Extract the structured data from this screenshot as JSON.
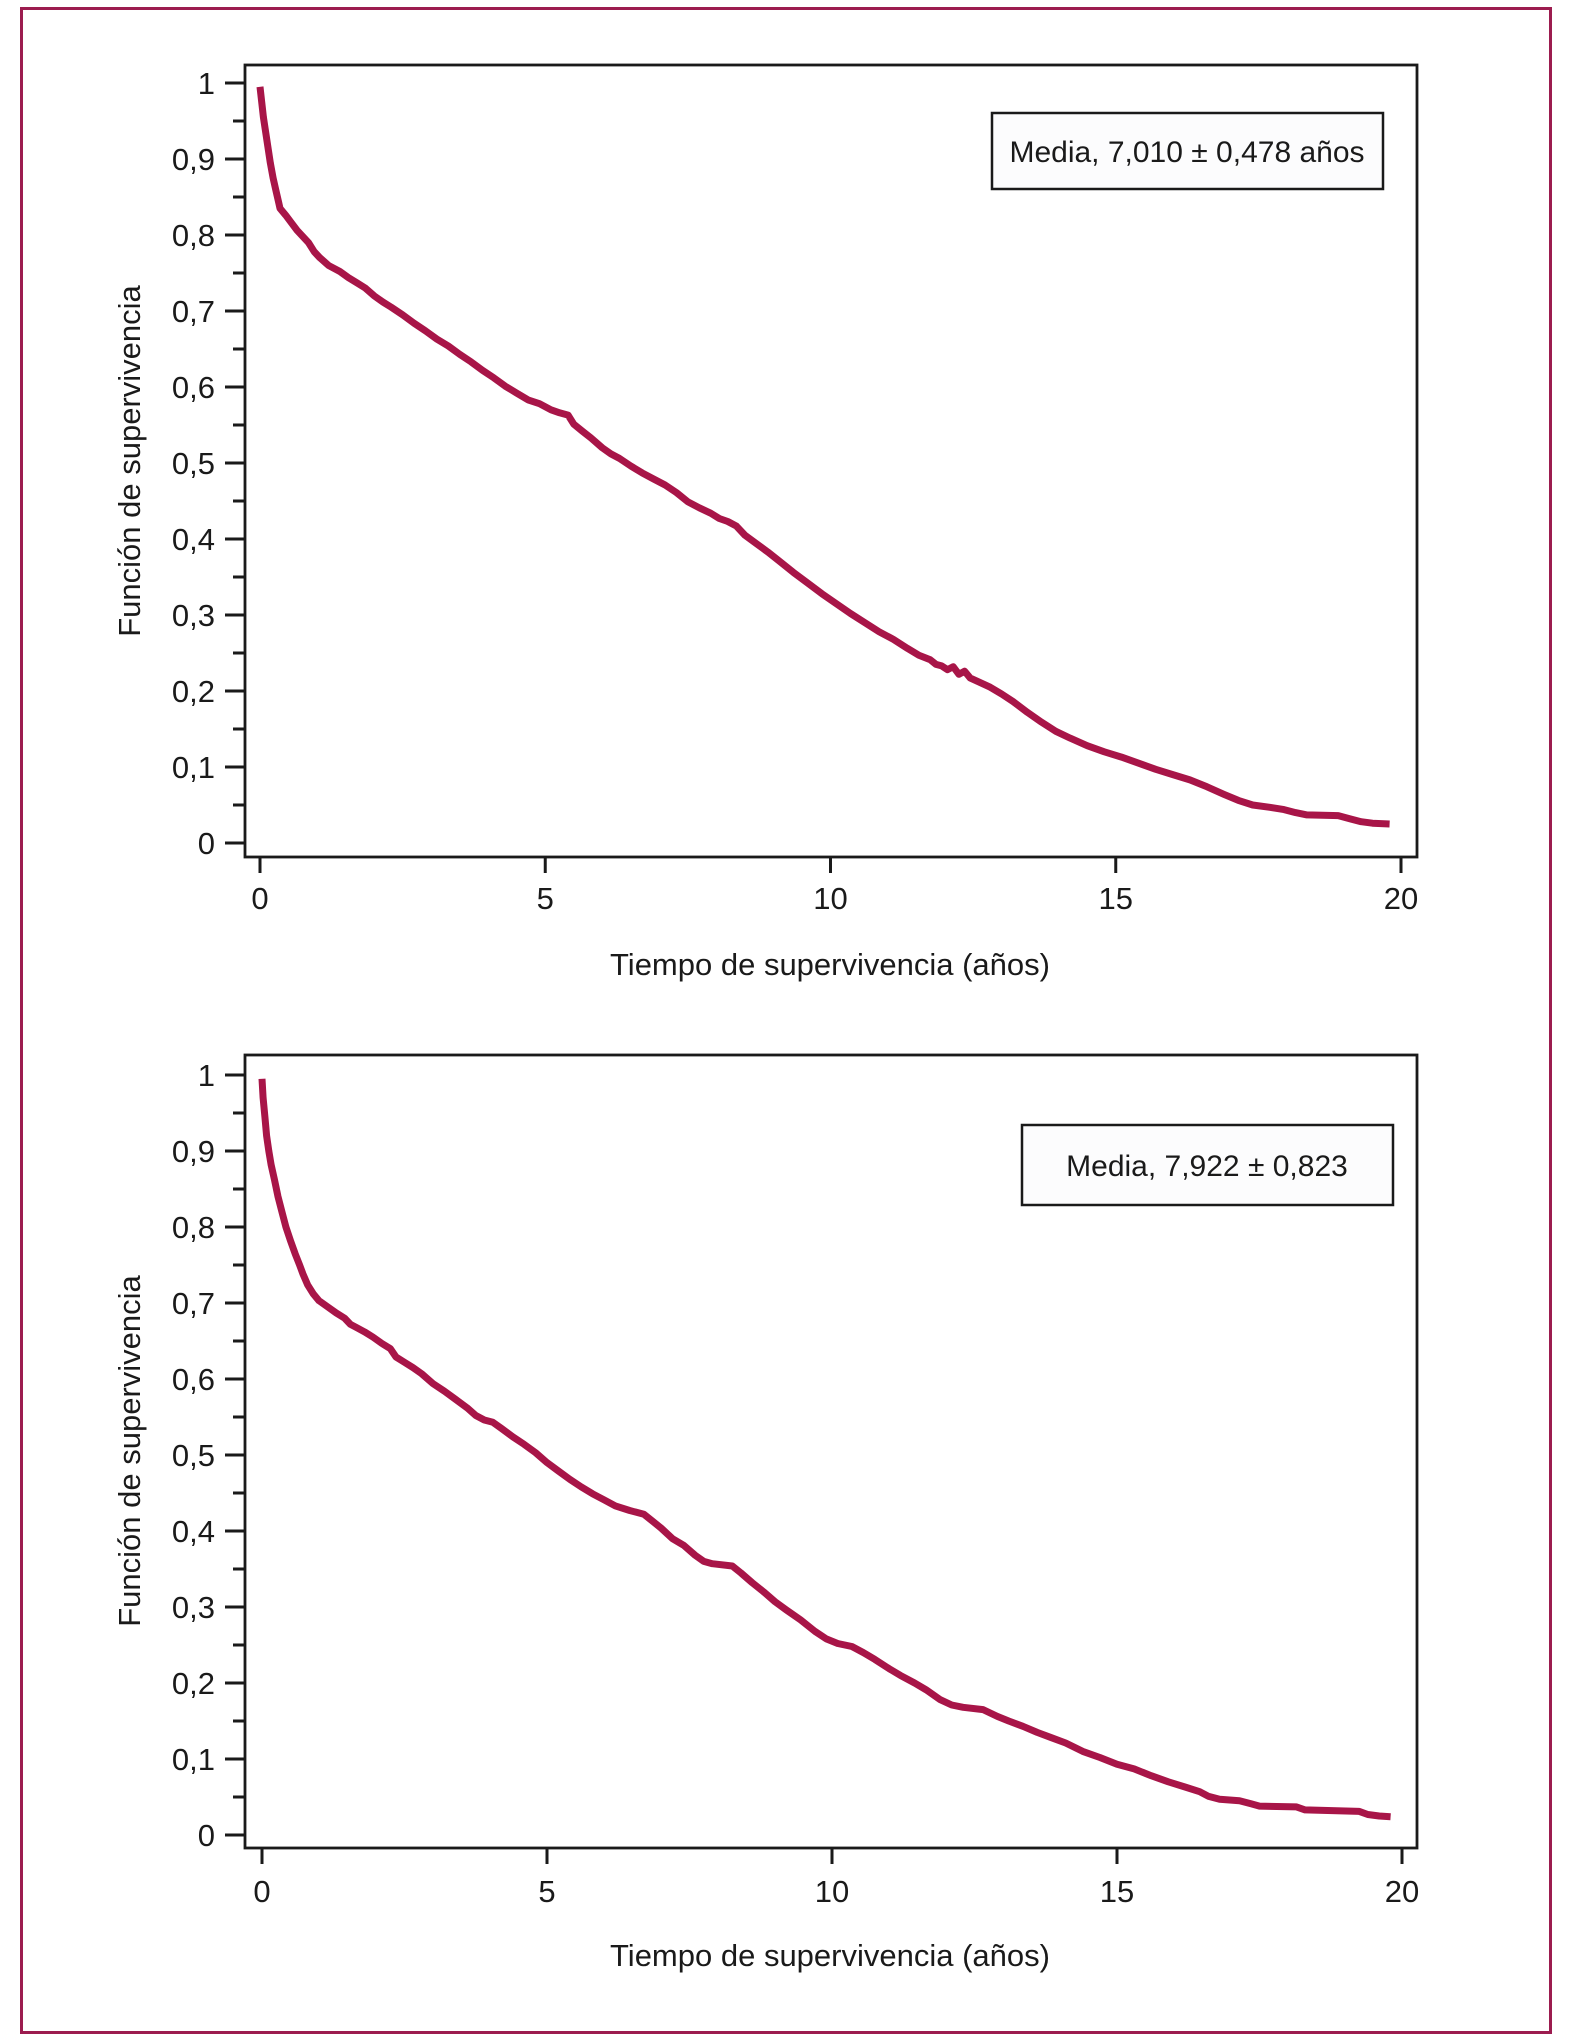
{
  "page": {
    "background": "#ffffff",
    "border_color": "#9C1C4F"
  },
  "chart_data": [
    {
      "type": "line",
      "subtype": "kaplan-meier-survival-curve",
      "title": "",
      "legend_box_text": "Media, 7,010 ± 0,478 años",
      "xlabel": "Tiempo de supervivencia (años)",
      "ylabel": "Función de supervivencia",
      "xlim": [
        0,
        20
      ],
      "ylim": [
        0,
        1
      ],
      "grid": false,
      "legend_position": "top-right",
      "line_color": "#A81548",
      "x_tick_values": [
        0,
        5,
        10,
        15,
        20
      ],
      "x_tick_labels": [
        "0",
        "5",
        "10",
        "15",
        "20"
      ],
      "y_tick_values": [
        0,
        0.1,
        0.2,
        0.3,
        0.4,
        0.5,
        0.6,
        0.7,
        0.8,
        0.9,
        1
      ],
      "y_tick_labels": [
        "0",
        "0,1",
        "0,2",
        "0,3",
        "0,4",
        "0,5",
        "0,6",
        "0,7",
        "0,8",
        "0,9",
        "1"
      ],
      "y_minor_tick_values": [
        0.05,
        0.15,
        0.25,
        0.35,
        0.45,
        0.55,
        0.65,
        0.75,
        0.85,
        0.95
      ],
      "points": [
        [
          0,
          0.995
        ],
        [
          0.03,
          0.975
        ],
        [
          0.06,
          0.955
        ],
        [
          0.1,
          0.935
        ],
        [
          0.14,
          0.915
        ],
        [
          0.18,
          0.895
        ],
        [
          0.23,
          0.875
        ],
        [
          0.28,
          0.858
        ],
        [
          0.32,
          0.845
        ],
        [
          0.35,
          0.835
        ],
        [
          0.45,
          0.826
        ],
        [
          0.55,
          0.816
        ],
        [
          0.65,
          0.806
        ],
        [
          0.75,
          0.798
        ],
        [
          0.85,
          0.79
        ],
        [
          0.95,
          0.778
        ],
        [
          1.05,
          0.77
        ],
        [
          1.2,
          0.76
        ],
        [
          1.4,
          0.752
        ],
        [
          1.55,
          0.744
        ],
        [
          1.7,
          0.737
        ],
        [
          1.85,
          0.73
        ],
        [
          2.0,
          0.72
        ],
        [
          2.15,
          0.712
        ],
        [
          2.3,
          0.705
        ],
        [
          2.5,
          0.695
        ],
        [
          2.7,
          0.684
        ],
        [
          2.9,
          0.674
        ],
        [
          3.1,
          0.663
        ],
        [
          3.3,
          0.654
        ],
        [
          3.5,
          0.643
        ],
        [
          3.7,
          0.633
        ],
        [
          3.9,
          0.622
        ],
        [
          4.1,
          0.612
        ],
        [
          4.3,
          0.601
        ],
        [
          4.5,
          0.592
        ],
        [
          4.7,
          0.583
        ],
        [
          4.9,
          0.578
        ],
        [
          5.1,
          0.57
        ],
        [
          5.25,
          0.566
        ],
        [
          5.4,
          0.563
        ],
        [
          5.5,
          0.551
        ],
        [
          5.65,
          0.542
        ],
        [
          5.8,
          0.533
        ],
        [
          6.0,
          0.52
        ],
        [
          6.15,
          0.512
        ],
        [
          6.3,
          0.506
        ],
        [
          6.5,
          0.496
        ],
        [
          6.7,
          0.487
        ],
        [
          6.9,
          0.479
        ],
        [
          7.1,
          0.471
        ],
        [
          7.3,
          0.461
        ],
        [
          7.5,
          0.449
        ],
        [
          7.7,
          0.441
        ],
        [
          7.9,
          0.434
        ],
        [
          8.05,
          0.427
        ],
        [
          8.2,
          0.423
        ],
        [
          8.35,
          0.417
        ],
        [
          8.5,
          0.405
        ],
        [
          8.7,
          0.394
        ],
        [
          8.9,
          0.383
        ],
        [
          9.1,
          0.371
        ],
        [
          9.35,
          0.356
        ],
        [
          9.6,
          0.342
        ],
        [
          9.85,
          0.328
        ],
        [
          10.1,
          0.315
        ],
        [
          10.35,
          0.302
        ],
        [
          10.6,
          0.29
        ],
        [
          10.85,
          0.278
        ],
        [
          11.1,
          0.268
        ],
        [
          11.35,
          0.256
        ],
        [
          11.55,
          0.247
        ],
        [
          11.75,
          0.241
        ],
        [
          11.85,
          0.235
        ],
        [
          11.95,
          0.233
        ],
        [
          12.05,
          0.228
        ],
        [
          12.15,
          0.232
        ],
        [
          12.25,
          0.222
        ],
        [
          12.35,
          0.226
        ],
        [
          12.45,
          0.217
        ],
        [
          12.6,
          0.212
        ],
        [
          12.8,
          0.205
        ],
        [
          13.0,
          0.196
        ],
        [
          13.2,
          0.186
        ],
        [
          13.45,
          0.172
        ],
        [
          13.7,
          0.159
        ],
        [
          13.95,
          0.147
        ],
        [
          14.2,
          0.138
        ],
        [
          14.5,
          0.128
        ],
        [
          14.8,
          0.12
        ],
        [
          15.1,
          0.113
        ],
        [
          15.4,
          0.105
        ],
        [
          15.7,
          0.097
        ],
        [
          16.0,
          0.09
        ],
        [
          16.3,
          0.083
        ],
        [
          16.6,
          0.074
        ],
        [
          16.9,
          0.064
        ],
        [
          17.15,
          0.056
        ],
        [
          17.4,
          0.05
        ],
        [
          17.7,
          0.047
        ],
        [
          17.95,
          0.044
        ],
        [
          18.15,
          0.04
        ],
        [
          18.35,
          0.037
        ],
        [
          18.9,
          0.036
        ],
        [
          19.1,
          0.032
        ],
        [
          19.3,
          0.028
        ],
        [
          19.5,
          0.026
        ],
        [
          19.8,
          0.025
        ]
      ]
    },
    {
      "type": "line",
      "subtype": "kaplan-meier-survival-curve",
      "title": "",
      "legend_box_text": "Media, 7,922 ± 0,823",
      "xlabel": "Tiempo de supervivencia (años)",
      "ylabel": "Función de supervivencia",
      "xlim": [
        0,
        20
      ],
      "ylim": [
        0,
        1
      ],
      "grid": false,
      "legend_position": "top-right",
      "line_color": "#A81548",
      "x_tick_values": [
        0,
        5,
        10,
        15,
        20
      ],
      "x_tick_labels": [
        "0",
        "5",
        "10",
        "15",
        "20"
      ],
      "y_tick_values": [
        0,
        0.1,
        0.2,
        0.3,
        0.4,
        0.5,
        0.6,
        0.7,
        0.8,
        0.9,
        1
      ],
      "y_tick_labels": [
        "0",
        "0,1",
        "0,2",
        "0,3",
        "0,4",
        "0,5",
        "0,6",
        "0,7",
        "0,8",
        "0,9",
        "1"
      ],
      "y_minor_tick_values": [
        0.05,
        0.15,
        0.25,
        0.35,
        0.45,
        0.55,
        0.65,
        0.75,
        0.85,
        0.95
      ],
      "points": [
        [
          0,
          0.995
        ],
        [
          0.02,
          0.97
        ],
        [
          0.05,
          0.945
        ],
        [
          0.08,
          0.92
        ],
        [
          0.12,
          0.9
        ],
        [
          0.16,
          0.882
        ],
        [
          0.22,
          0.862
        ],
        [
          0.28,
          0.84
        ],
        [
          0.35,
          0.82
        ],
        [
          0.42,
          0.8
        ],
        [
          0.5,
          0.782
        ],
        [
          0.58,
          0.765
        ],
        [
          0.66,
          0.75
        ],
        [
          0.72,
          0.738
        ],
        [
          0.8,
          0.724
        ],
        [
          0.9,
          0.712
        ],
        [
          1.0,
          0.703
        ],
        [
          1.15,
          0.695
        ],
        [
          1.3,
          0.687
        ],
        [
          1.45,
          0.68
        ],
        [
          1.55,
          0.672
        ],
        [
          1.65,
          0.668
        ],
        [
          1.8,
          0.662
        ],
        [
          1.95,
          0.655
        ],
        [
          2.1,
          0.647
        ],
        [
          2.25,
          0.64
        ],
        [
          2.35,
          0.629
        ],
        [
          2.5,
          0.622
        ],
        [
          2.65,
          0.615
        ],
        [
          2.8,
          0.607
        ],
        [
          3.0,
          0.594
        ],
        [
          3.2,
          0.584
        ],
        [
          3.4,
          0.573
        ],
        [
          3.6,
          0.562
        ],
        [
          3.75,
          0.552
        ],
        [
          3.9,
          0.546
        ],
        [
          4.05,
          0.543
        ],
        [
          4.2,
          0.535
        ],
        [
          4.4,
          0.524
        ],
        [
          4.6,
          0.514
        ],
        [
          4.8,
          0.503
        ],
        [
          5.0,
          0.49
        ],
        [
          5.2,
          0.479
        ],
        [
          5.4,
          0.468
        ],
        [
          5.6,
          0.458
        ],
        [
          5.8,
          0.449
        ],
        [
          6.0,
          0.441
        ],
        [
          6.2,
          0.433
        ],
        [
          6.45,
          0.427
        ],
        [
          6.7,
          0.422
        ],
        [
          6.85,
          0.413
        ],
        [
          7.0,
          0.404
        ],
        [
          7.2,
          0.39
        ],
        [
          7.4,
          0.381
        ],
        [
          7.6,
          0.368
        ],
        [
          7.75,
          0.36
        ],
        [
          7.9,
          0.357
        ],
        [
          8.25,
          0.354
        ],
        [
          8.4,
          0.345
        ],
        [
          8.6,
          0.332
        ],
        [
          8.8,
          0.32
        ],
        [
          9.0,
          0.307
        ],
        [
          9.2,
          0.296
        ],
        [
          9.45,
          0.283
        ],
        [
          9.7,
          0.268
        ],
        [
          9.9,
          0.258
        ],
        [
          10.1,
          0.252
        ],
        [
          10.35,
          0.248
        ],
        [
          10.55,
          0.24
        ],
        [
          10.75,
          0.231
        ],
        [
          11.0,
          0.219
        ],
        [
          11.2,
          0.21
        ],
        [
          11.45,
          0.2
        ],
        [
          11.65,
          0.191
        ],
        [
          11.9,
          0.178
        ],
        [
          12.1,
          0.171
        ],
        [
          12.3,
          0.168
        ],
        [
          12.65,
          0.165
        ],
        [
          12.9,
          0.156
        ],
        [
          13.1,
          0.15
        ],
        [
          13.35,
          0.143
        ],
        [
          13.6,
          0.135
        ],
        [
          13.85,
          0.128
        ],
        [
          14.1,
          0.121
        ],
        [
          14.4,
          0.11
        ],
        [
          14.7,
          0.102
        ],
        [
          15.0,
          0.093
        ],
        [
          15.3,
          0.087
        ],
        [
          15.6,
          0.078
        ],
        [
          15.9,
          0.07
        ],
        [
          16.2,
          0.063
        ],
        [
          16.45,
          0.057
        ],
        [
          16.6,
          0.051
        ],
        [
          16.8,
          0.047
        ],
        [
          17.15,
          0.045
        ],
        [
          17.35,
          0.041
        ],
        [
          17.5,
          0.038
        ],
        [
          18.15,
          0.037
        ],
        [
          18.3,
          0.033
        ],
        [
          19.25,
          0.031
        ],
        [
          19.4,
          0.027
        ],
        [
          19.6,
          0.025
        ],
        [
          19.8,
          0.024
        ]
      ]
    }
  ]
}
